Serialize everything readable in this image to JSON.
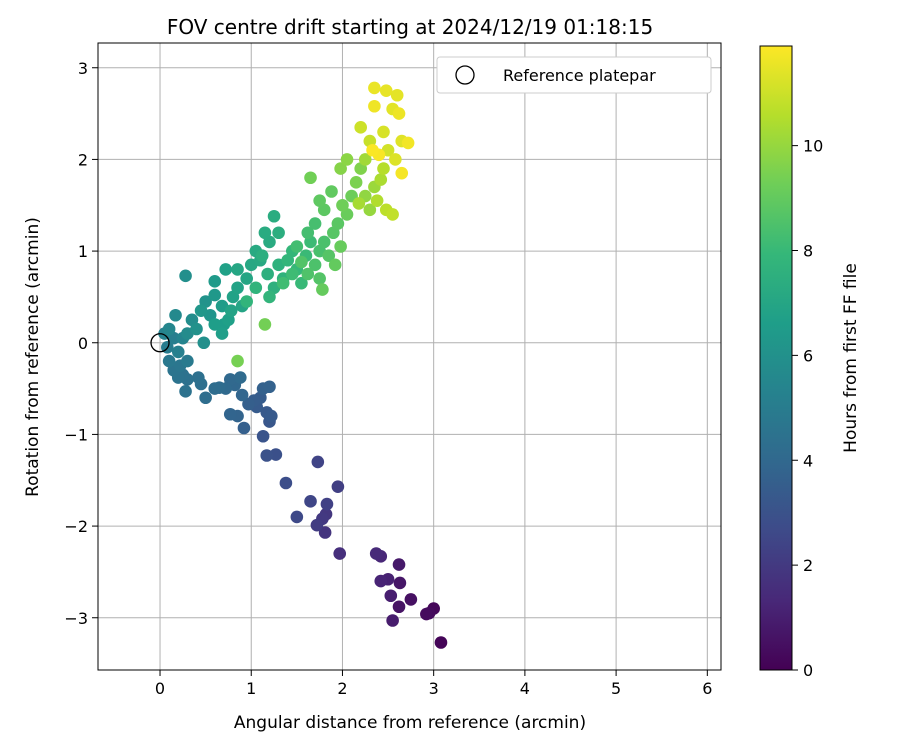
{
  "chart_data": {
    "type": "scatter",
    "title": "FOV centre drift starting at 2024/12/19 01:18:15",
    "xlabel": "Angular distance from reference (arcmin)",
    "ylabel": "Rotation from reference (arcmin)",
    "xlim": [
      -0.68,
      6.15
    ],
    "ylim": [
      -3.57,
      3.27
    ],
    "xticks": [
      "0",
      "1",
      "2",
      "3",
      "4",
      "5",
      "6"
    ],
    "yticks": [
      "−3",
      "−2",
      "−1",
      "0",
      "1",
      "2",
      "3"
    ],
    "grid": true,
    "legend": {
      "position": "top-right",
      "entries": [
        "Reference platepar"
      ]
    },
    "reference_point": {
      "x": 0,
      "y": 0
    },
    "colorbar": {
      "label": "Hours from first FF file",
      "range": [
        0,
        11.9
      ],
      "ticks": [
        "0",
        "2",
        "4",
        "6",
        "8",
        "10"
      ],
      "colormap": "viridis",
      "stops": [
        "#440154",
        "#482878",
        "#3e4a89",
        "#31688e",
        "#26828e",
        "#1f9e89",
        "#35b779",
        "#6ece58",
        "#b5de2b",
        "#fde725"
      ]
    },
    "series": [
      {
        "points": [
          [
            3.08,
            -3.27,
            0.1
          ],
          [
            3.0,
            -2.9,
            0.2
          ],
          [
            2.95,
            -2.95,
            0.3
          ],
          [
            2.92,
            -2.96,
            0.35
          ],
          [
            2.75,
            -2.8,
            0.5
          ],
          [
            2.62,
            -2.88,
            0.6
          ],
          [
            2.63,
            -2.62,
            0.7
          ],
          [
            2.62,
            -2.42,
            0.8
          ],
          [
            2.55,
            -3.03,
            0.9
          ],
          [
            2.53,
            -2.76,
            1.0
          ],
          [
            2.5,
            -2.58,
            1.1
          ],
          [
            2.42,
            -2.6,
            1.2
          ],
          [
            2.42,
            -2.33,
            1.3
          ],
          [
            2.37,
            -2.3,
            1.4
          ],
          [
            1.97,
            -2.3,
            1.6
          ],
          [
            1.81,
            -2.07,
            1.8
          ],
          [
            1.82,
            -1.87,
            1.9
          ],
          [
            1.78,
            -1.92,
            2.0
          ],
          [
            1.72,
            -1.99,
            2.1
          ],
          [
            1.95,
            -1.57,
            2.2
          ],
          [
            1.83,
            -1.76,
            2.3
          ],
          [
            1.73,
            -1.3,
            2.4
          ],
          [
            1.65,
            -1.73,
            2.5
          ],
          [
            1.5,
            -1.9,
            2.6
          ],
          [
            1.38,
            -1.53,
            2.8
          ],
          [
            1.27,
            -1.22,
            2.9
          ],
          [
            1.17,
            -1.23,
            3.0
          ],
          [
            1.13,
            -1.02,
            3.1
          ],
          [
            1.2,
            -0.86,
            3.2
          ],
          [
            1.17,
            -0.76,
            3.3
          ],
          [
            1.22,
            -0.8,
            3.35
          ],
          [
            1.06,
            -0.7,
            3.4
          ],
          [
            1.1,
            -0.6,
            3.45
          ],
          [
            1.03,
            -0.63,
            3.5
          ],
          [
            0.97,
            -0.67,
            3.55
          ],
          [
            0.92,
            -0.93,
            3.6
          ],
          [
            1.13,
            -0.5,
            3.65
          ],
          [
            1.2,
            -0.48,
            3.7
          ],
          [
            0.85,
            -0.8,
            3.8
          ],
          [
            0.77,
            -0.78,
            3.85
          ],
          [
            0.9,
            -0.57,
            3.9
          ],
          [
            0.82,
            -0.46,
            3.95
          ],
          [
            0.77,
            -0.4,
            4.0
          ],
          [
            0.72,
            -0.5,
            4.05
          ],
          [
            0.88,
            -0.38,
            4.1
          ],
          [
            0.65,
            -0.49,
            4.15
          ],
          [
            0.6,
            -0.5,
            4.2
          ],
          [
            0.5,
            -0.6,
            4.25
          ],
          [
            0.45,
            -0.45,
            4.3
          ],
          [
            0.42,
            -0.38,
            4.35
          ],
          [
            0.3,
            -0.4,
            4.4
          ],
          [
            0.28,
            -0.53,
            4.45
          ],
          [
            0.25,
            -0.35,
            4.5
          ],
          [
            0.2,
            -0.38,
            4.55
          ],
          [
            0.15,
            -0.3,
            4.6
          ],
          [
            0.22,
            -0.25,
            4.7
          ],
          [
            0.1,
            -0.2,
            4.8
          ],
          [
            0.3,
            -0.2,
            4.9
          ],
          [
            0.08,
            -0.05,
            5.0
          ],
          [
            0.15,
            0.05,
            5.1
          ],
          [
            0.2,
            -0.1,
            5.2
          ],
          [
            0.05,
            0.1,
            5.3
          ],
          [
            0.25,
            0.05,
            5.4
          ],
          [
            0.1,
            0.15,
            5.5
          ],
          [
            0.17,
            0.3,
            5.6
          ],
          [
            0.3,
            0.1,
            5.7
          ],
          [
            0.35,
            0.25,
            5.8
          ],
          [
            0.28,
            0.73,
            5.9
          ],
          [
            0.48,
            0.0,
            5.95
          ],
          [
            0.4,
            0.15,
            6.0
          ],
          [
            0.5,
            0.45,
            6.1
          ],
          [
            0.55,
            0.3,
            6.2
          ],
          [
            0.45,
            0.35,
            6.3
          ],
          [
            0.6,
            0.52,
            6.35
          ],
          [
            0.6,
            0.67,
            6.4
          ],
          [
            0.68,
            0.4,
            6.5
          ],
          [
            0.7,
            0.2,
            6.55
          ],
          [
            0.6,
            0.2,
            6.6
          ],
          [
            0.68,
            0.1,
            6.65
          ],
          [
            0.75,
            0.25,
            6.7
          ],
          [
            0.72,
            0.8,
            6.75
          ],
          [
            0.8,
            0.5,
            6.8
          ],
          [
            0.85,
            0.6,
            6.85
          ],
          [
            0.78,
            0.35,
            6.9
          ],
          [
            0.9,
            0.4,
            6.95
          ],
          [
            0.95,
            0.7,
            7.0
          ],
          [
            0.85,
            0.8,
            7.05
          ],
          [
            1.0,
            0.85,
            7.1
          ],
          [
            1.1,
            0.9,
            7.15
          ],
          [
            1.05,
            1.0,
            7.2
          ],
          [
            1.2,
            1.1,
            7.25
          ],
          [
            1.15,
            1.2,
            7.3
          ],
          [
            1.25,
            1.38,
            7.35
          ],
          [
            1.3,
            1.2,
            7.4
          ],
          [
            1.12,
            0.95,
            7.45
          ],
          [
            1.18,
            0.75,
            7.5
          ],
          [
            1.25,
            0.6,
            7.55
          ],
          [
            1.3,
            0.85,
            7.6
          ],
          [
            1.35,
            0.7,
            7.65
          ],
          [
            1.05,
            0.6,
            7.7
          ],
          [
            0.95,
            0.45,
            7.75
          ],
          [
            1.2,
            0.5,
            7.8
          ],
          [
            1.4,
            0.9,
            7.85
          ],
          [
            1.45,
            1.0,
            7.9
          ],
          [
            1.5,
            0.8,
            7.95
          ],
          [
            1.55,
            0.65,
            8.0
          ],
          [
            1.6,
            0.95,
            8.05
          ],
          [
            1.65,
            1.1,
            8.1
          ],
          [
            1.45,
            0.75,
            8.15
          ],
          [
            1.35,
            0.65,
            8.2
          ],
          [
            1.5,
            1.05,
            8.25
          ],
          [
            1.62,
            1.2,
            8.3
          ],
          [
            1.7,
            1.3,
            8.35
          ],
          [
            1.75,
            1.0,
            8.4
          ],
          [
            1.8,
            1.1,
            8.45
          ],
          [
            1.7,
            0.85,
            8.5
          ],
          [
            1.62,
            0.75,
            8.55
          ],
          [
            1.55,
            0.88,
            8.6
          ],
          [
            1.75,
            0.7,
            8.65
          ],
          [
            1.85,
            0.95,
            8.7
          ],
          [
            1.9,
            1.2,
            8.75
          ],
          [
            1.95,
            1.3,
            8.8
          ],
          [
            1.8,
            1.45,
            8.85
          ],
          [
            1.75,
            1.55,
            8.9
          ],
          [
            1.88,
            1.65,
            8.95
          ],
          [
            1.92,
            0.85,
            9.0
          ],
          [
            1.78,
            0.58,
            9.05
          ],
          [
            1.98,
            1.05,
            9.1
          ],
          [
            2.05,
            1.4,
            9.15
          ],
          [
            2.1,
            1.6,
            9.2
          ],
          [
            2.0,
            1.5,
            9.25
          ],
          [
            1.65,
            1.8,
            9.3
          ],
          [
            1.15,
            0.2,
            9.35
          ],
          [
            0.85,
            -0.2,
            9.4
          ],
          [
            2.15,
            1.75,
            9.5
          ],
          [
            2.2,
            1.9,
            9.6
          ],
          [
            1.98,
            1.9,
            9.7
          ],
          [
            2.05,
            2.0,
            9.8
          ],
          [
            2.25,
            1.6,
            9.9
          ],
          [
            2.3,
            1.45,
            10.0
          ],
          [
            2.35,
            1.7,
            10.1
          ],
          [
            2.25,
            2.0,
            10.2
          ],
          [
            2.18,
            1.52,
            10.3
          ],
          [
            2.42,
            1.78,
            10.4
          ],
          [
            2.38,
            1.55,
            10.5
          ],
          [
            2.45,
            1.9,
            10.6
          ],
          [
            2.48,
            1.45,
            10.7
          ],
          [
            2.55,
            1.4,
            10.8
          ],
          [
            2.3,
            2.2,
            10.9
          ],
          [
            2.2,
            2.35,
            11.0
          ],
          [
            2.5,
            2.1,
            11.1
          ],
          [
            2.45,
            2.3,
            11.2
          ],
          [
            2.58,
            2.0,
            11.3
          ],
          [
            2.65,
            2.2,
            11.35
          ],
          [
            2.55,
            2.55,
            11.4
          ],
          [
            2.6,
            2.7,
            11.45
          ],
          [
            2.48,
            2.75,
            11.5
          ],
          [
            2.35,
            2.78,
            11.55
          ],
          [
            2.62,
            2.5,
            11.6
          ],
          [
            2.35,
            2.58,
            11.65
          ],
          [
            2.72,
            2.18,
            11.7
          ],
          [
            2.65,
            1.85,
            11.75
          ],
          [
            2.4,
            2.05,
            11.8
          ],
          [
            2.33,
            2.1,
            11.85
          ]
        ]
      }
    ]
  }
}
